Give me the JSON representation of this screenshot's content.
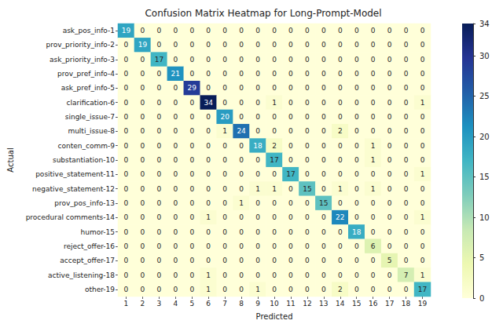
{
  "chart_data": {
    "type": "heatmap",
    "title": "Confusion Matrix Heatmap for Long-Prompt-Model",
    "x_label": "Predicted",
    "y_label": "Actual",
    "categories": [
      "1",
      "2",
      "3",
      "4",
      "5",
      "6",
      "7",
      "8",
      "9",
      "10",
      "11",
      "12",
      "13",
      "14",
      "15",
      "16",
      "17",
      "18",
      "19"
    ],
    "y_categories": [
      "ask_pos_info-1",
      "prov_priority_info-2",
      "ask_priority_info-3",
      "prov_pref_info-4",
      "ask_pref_info-5",
      "clarification-6",
      "single_issue-7",
      "multi_issue-8",
      "conten_comm-9",
      "substantiation-10",
      "positive_statement-11",
      "negative_statement-12",
      "prov_pos_info-13",
      "procedural comments-14",
      "humor-15",
      "reject_offer-16",
      "accept_offer-17",
      "active_listening-18",
      "other-19"
    ],
    "cells": [
      [
        19,
        0,
        0,
        0,
        0,
        0,
        0,
        0,
        0,
        0,
        0,
        0,
        0,
        0,
        0,
        0,
        0,
        0,
        0
      ],
      [
        0,
        19,
        0,
        0,
        0,
        0,
        0,
        0,
        0,
        0,
        0,
        0,
        0,
        0,
        0,
        0,
        0,
        0,
        0
      ],
      [
        0,
        0,
        17,
        0,
        0,
        0,
        0,
        0,
        0,
        0,
        0,
        0,
        0,
        0,
        0,
        0,
        0,
        0,
        0
      ],
      [
        0,
        0,
        0,
        21,
        0,
        0,
        0,
        0,
        0,
        0,
        0,
        0,
        0,
        0,
        0,
        0,
        0,
        0,
        0
      ],
      [
        0,
        0,
        0,
        0,
        29,
        0,
        0,
        0,
        0,
        0,
        0,
        0,
        0,
        0,
        0,
        0,
        0,
        0,
        0
      ],
      [
        0,
        0,
        0,
        0,
        0,
        34,
        0,
        0,
        0,
        1,
        0,
        0,
        0,
        0,
        0,
        0,
        0,
        0,
        1
      ],
      [
        0,
        0,
        0,
        0,
        0,
        0,
        20,
        0,
        0,
        0,
        0,
        0,
        0,
        0,
        0,
        0,
        0,
        0,
        0
      ],
      [
        0,
        0,
        0,
        0,
        0,
        0,
        1,
        24,
        0,
        0,
        0,
        0,
        0,
        2,
        0,
        0,
        0,
        0,
        0
      ],
      [
        0,
        0,
        0,
        0,
        0,
        0,
        0,
        0,
        18,
        2,
        0,
        0,
        0,
        0,
        0,
        1,
        0,
        0,
        0
      ],
      [
        0,
        0,
        0,
        0,
        0,
        0,
        0,
        0,
        0,
        17,
        0,
        0,
        0,
        0,
        0,
        1,
        0,
        0,
        0
      ],
      [
        0,
        0,
        0,
        0,
        0,
        0,
        0,
        0,
        0,
        0,
        17,
        0,
        0,
        0,
        0,
        0,
        0,
        0,
        1
      ],
      [
        0,
        0,
        0,
        0,
        0,
        0,
        0,
        0,
        1,
        1,
        0,
        15,
        0,
        1,
        0,
        1,
        0,
        0,
        0
      ],
      [
        0,
        0,
        0,
        0,
        0,
        0,
        0,
        1,
        0,
        0,
        0,
        0,
        15,
        0,
        0,
        0,
        0,
        0,
        0
      ],
      [
        0,
        0,
        0,
        0,
        0,
        1,
        0,
        0,
        0,
        0,
        0,
        0,
        0,
        22,
        0,
        0,
        0,
        0,
        1
      ],
      [
        0,
        0,
        0,
        0,
        0,
        0,
        0,
        0,
        0,
        0,
        0,
        0,
        0,
        0,
        18,
        0,
        0,
        0,
        0
      ],
      [
        0,
        0,
        0,
        0,
        0,
        0,
        0,
        0,
        0,
        0,
        0,
        0,
        0,
        0,
        0,
        6,
        0,
        0,
        0
      ],
      [
        0,
        0,
        0,
        0,
        0,
        0,
        0,
        0,
        0,
        0,
        0,
        0,
        0,
        0,
        0,
        0,
        5,
        0,
        0
      ],
      [
        0,
        0,
        0,
        0,
        0,
        1,
        0,
        0,
        0,
        0,
        0,
        0,
        0,
        0,
        0,
        0,
        0,
        7,
        1
      ],
      [
        0,
        0,
        0,
        0,
        0,
        1,
        0,
        0,
        1,
        0,
        0,
        0,
        0,
        2,
        0,
        0,
        0,
        0,
        17
      ]
    ],
    "colorbar_range": [
      0,
      34
    ],
    "colorbar_ticks": [
      0,
      5,
      10,
      15,
      20,
      25,
      30
    ],
    "data_labels": true
  }
}
